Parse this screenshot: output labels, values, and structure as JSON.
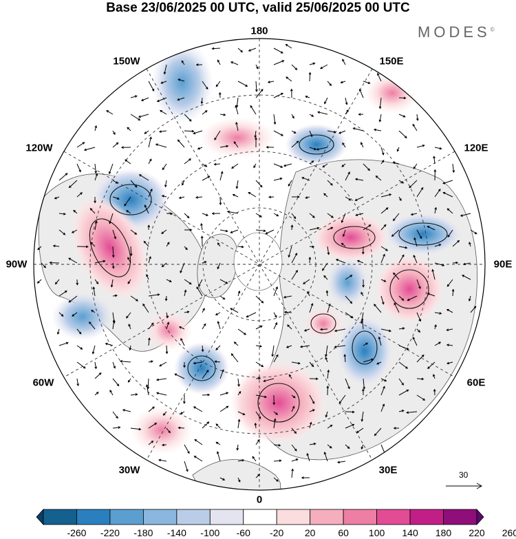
{
  "title": "Base 23/06/2025 00 UTC, valid 25/06/2025 00 UTC",
  "brand": {
    "name": "MODES",
    "mark": "©"
  },
  "longitude_labels": {
    "north": "180",
    "south": "0",
    "west": "90W",
    "east": "90E",
    "nw_upper": "150W",
    "ne_upper": "150E",
    "nw_lower": "120W",
    "ne_lower": "120E",
    "sw_upper": "60W",
    "se_upper": "60E",
    "sw_lower": "30W",
    "se_lower": "30E"
  },
  "colorbar": {
    "tick_labels": [
      "-260",
      "-220",
      "-180",
      "-140",
      "-100",
      "-60",
      "-20",
      "20",
      "60",
      "100",
      "140",
      "180",
      "220",
      "260"
    ],
    "colors": [
      "#0b3f62",
      "#14608f",
      "#2a80bf",
      "#5b9fd1",
      "#8bb7de",
      "#b9cde8",
      "#e4e4f1",
      "#ffffff",
      "#fbdcdf",
      "#f5aebe",
      "#ee7ea4",
      "#e24c95",
      "#c21f86",
      "#8f0e79",
      "#5a0a6b"
    ]
  },
  "reference_vector": {
    "label": "30"
  },
  "anomalies": [
    {
      "sign": "neg",
      "strength": 3,
      "name": "low-nw-pacific"
    },
    {
      "sign": "neg",
      "strength": 4,
      "name": "low-alaska"
    },
    {
      "sign": "pos",
      "strength": 3,
      "name": "high-canada"
    },
    {
      "sign": "neg",
      "strength": 4,
      "name": "low-atlantic"
    },
    {
      "sign": "pos",
      "strength": 4,
      "name": "high-europe"
    },
    {
      "sign": "neg",
      "strength": 3,
      "name": "low-russia"
    },
    {
      "sign": "pos",
      "strength": 3,
      "name": "high-siberia"
    },
    {
      "sign": "pos",
      "strength": 3,
      "name": "high-central-asia"
    },
    {
      "sign": "neg",
      "strength": 3,
      "name": "low-east-asia"
    },
    {
      "sign": "neg",
      "strength": 3,
      "name": "low-bering"
    }
  ]
}
